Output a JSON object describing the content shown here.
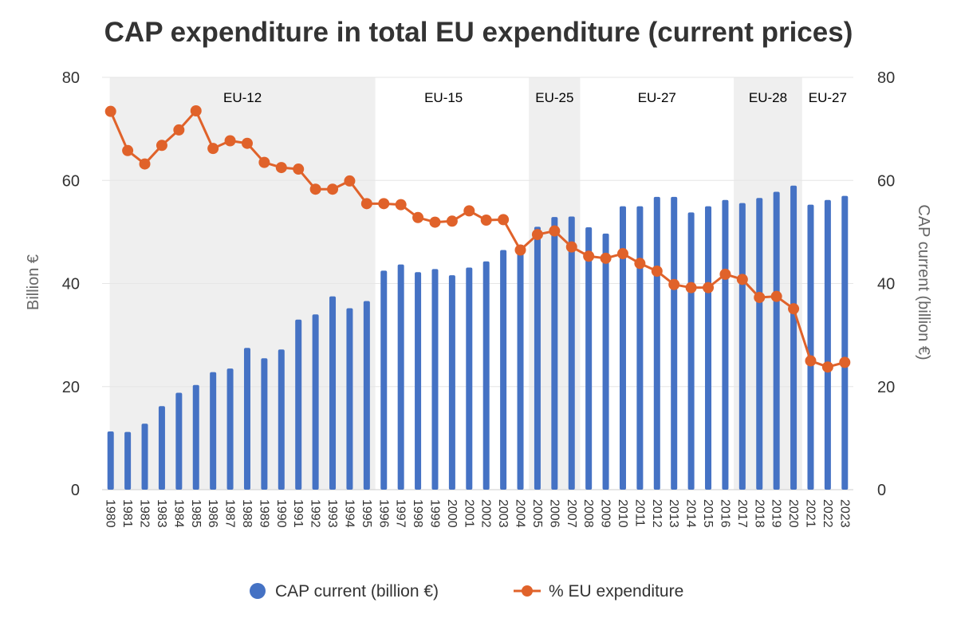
{
  "chart_data": {
    "type": "bar+line",
    "title": "CAP expenditure in total EU expenditure (current prices)",
    "ylabel_left": "Billion €",
    "ylabel_right": "CAP current (billion €)",
    "ylim": [
      0,
      80
    ],
    "yticks": [
      0,
      20,
      40,
      60,
      80
    ],
    "categories": [
      "1980",
      "1981",
      "1982",
      "1983",
      "1984",
      "1985",
      "1986",
      "1987",
      "1988",
      "1989",
      "1990",
      "1991",
      "1992",
      "1993",
      "1994",
      "1995",
      "1996",
      "1997",
      "1998",
      "1999",
      "2000",
      "2001",
      "2002",
      "2003",
      "2004",
      "2005",
      "2006",
      "2007",
      "2008",
      "2009",
      "2010",
      "2011",
      "2012",
      "2013",
      "2014",
      "2015",
      "2016",
      "2017",
      "2018",
      "2019",
      "2020",
      "2021",
      "2022",
      "2023"
    ],
    "series": [
      {
        "name": "CAP current (billion €)",
        "type": "bar",
        "color": "#4572c4",
        "values": [
          11.3,
          11.2,
          12.8,
          16.2,
          18.8,
          20.3,
          22.8,
          23.5,
          27.5,
          25.5,
          27.2,
          33.0,
          34.0,
          37.5,
          35.2,
          36.6,
          42.5,
          43.7,
          42.2,
          42.8,
          41.6,
          43.1,
          44.3,
          46.5,
          47.5,
          51.0,
          52.9,
          53.0,
          50.9,
          49.7,
          55.0,
          55.0,
          56.8,
          56.8,
          53.8,
          55.0,
          56.2,
          55.6,
          56.6,
          57.8,
          59.0,
          55.3,
          56.2,
          57.0
        ]
      },
      {
        "name": "% EU expenditure",
        "type": "line",
        "color": "#e0622a",
        "values": [
          73.4,
          65.8,
          63.2,
          66.8,
          69.8,
          73.5,
          66.2,
          67.7,
          67.2,
          63.5,
          62.5,
          62.2,
          58.3,
          58.3,
          59.9,
          55.5,
          55.5,
          55.3,
          52.8,
          51.9,
          52.1,
          54.1,
          52.3,
          52.4,
          46.5,
          49.5,
          50.2,
          47.1,
          45.3,
          44.9,
          45.8,
          43.9,
          42.4,
          39.8,
          39.2,
          39.2,
          41.8,
          40.8,
          37.3,
          37.5,
          35.1,
          25.0,
          23.8,
          24.7
        ]
      }
    ],
    "eras": [
      {
        "label": "EU-12",
        "start": "1980",
        "end": "1995",
        "shaded": true
      },
      {
        "label": "EU-15",
        "start": "1995",
        "end": "2004",
        "shaded": false
      },
      {
        "label": "EU-25",
        "start": "2005",
        "end": "2007",
        "shaded": true
      },
      {
        "label": "EU-27",
        "start": "2008",
        "end": "2016",
        "shaded": false
      },
      {
        "label": "EU-28",
        "start": "2017",
        "end": "2020",
        "shaded": true
      },
      {
        "label": "EU-27",
        "start": "2021",
        "end": "2023",
        "shaded": false
      }
    ],
    "legend": {
      "position": "bottom"
    },
    "grid": true
  }
}
